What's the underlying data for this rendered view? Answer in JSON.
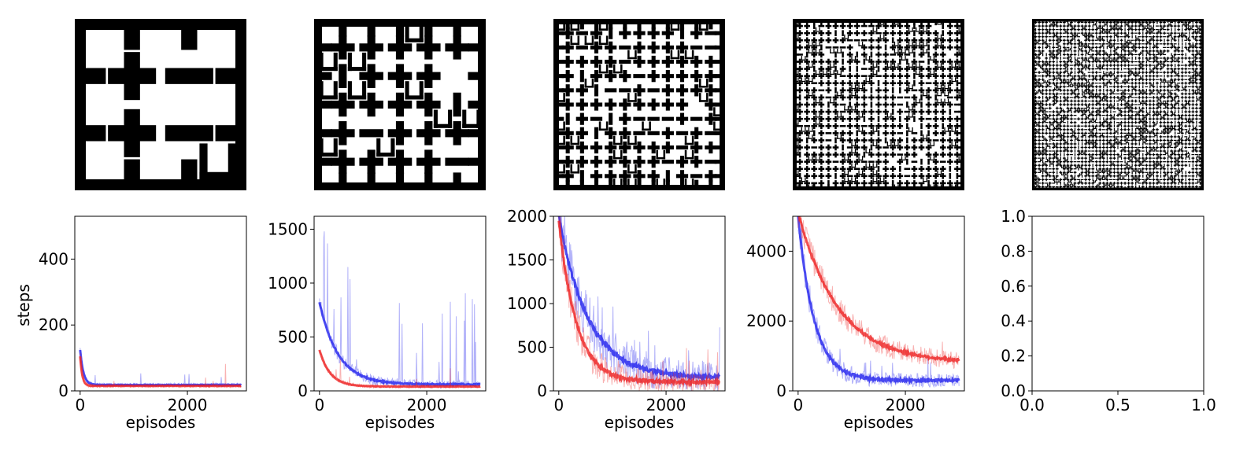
{
  "mazes": [
    {
      "grid": 3
    },
    {
      "grid": 6
    },
    {
      "grid": 12
    },
    {
      "grid": 24
    },
    {
      "grid": 48
    }
  ],
  "colors": {
    "agent_a": "#2222ee",
    "agent_b": "#ee2222"
  },
  "chart_data": [
    {
      "type": "line",
      "xlabel": "episodes",
      "ylabel": "steps",
      "xlim": [
        -100,
        3100
      ],
      "ylim": [
        0,
        530
      ],
      "xticks": [
        0,
        2000
      ],
      "yticks": [
        0,
        200,
        400
      ],
      "grid": false,
      "series": [
        {
          "color": "blue",
          "start": 125,
          "end": 18,
          "tau": 60,
          "noise": 12,
          "spike_prob": 0.02,
          "spike_max": 40
        },
        {
          "color": "red",
          "start": 105,
          "end": 15,
          "tau": 40,
          "noise": 10,
          "spike_prob": 0.01,
          "spike_max": 120
        }
      ]
    },
    {
      "type": "line",
      "xlabel": "episodes",
      "ylabel": "",
      "xlim": [
        -100,
        3100
      ],
      "ylim": [
        0,
        1620
      ],
      "xticks": [
        0,
        2000
      ],
      "yticks": [
        0,
        500,
        1000,
        1500
      ],
      "grid": false,
      "series": [
        {
          "color": "blue",
          "start": 820,
          "end": 60,
          "tau": 350,
          "noise": 80,
          "spike_prob": 0.08,
          "spike_max": 900
        },
        {
          "color": "red",
          "start": 380,
          "end": 40,
          "tau": 200,
          "noise": 30,
          "spike_prob": 0.01,
          "spike_max": 200
        }
      ]
    },
    {
      "type": "line",
      "xlabel": "episodes",
      "ylabel": "",
      "xlim": [
        -100,
        3100
      ],
      "ylim": [
        0,
        2000
      ],
      "xticks": [
        0,
        2000
      ],
      "yticks": [
        0,
        500,
        1000,
        1500,
        2000
      ],
      "grid": false,
      "series": [
        {
          "color": "blue",
          "start": 2000,
          "end": 150,
          "tau": 550,
          "noise": 350,
          "spike_prob": 0.05,
          "spike_max": 600
        },
        {
          "color": "red",
          "start": 1950,
          "end": 100,
          "tau": 330,
          "noise": 250,
          "spike_prob": 0.02,
          "spike_max": 400
        }
      ]
    },
    {
      "type": "line",
      "xlabel": "episodes",
      "ylabel": "",
      "xlim": [
        -100,
        3100
      ],
      "ylim": [
        0,
        5000
      ],
      "xticks": [
        0,
        2000
      ],
      "yticks": [
        0,
        2000,
        4000
      ],
      "grid": false,
      "series": [
        {
          "color": "blue",
          "start": 5000,
          "end": 300,
          "tau": 300,
          "noise": 450,
          "spike_prob": 0.03,
          "spike_max": 900
        },
        {
          "color": "red",
          "start": 5100,
          "end": 800,
          "tau": 750,
          "noise": 450,
          "spike_prob": 0.02,
          "spike_max": 700
        }
      ]
    },
    {
      "type": "line",
      "xlabel": "",
      "ylabel": "",
      "xlim": [
        0.0,
        1.0
      ],
      "ylim": [
        0.0,
        1.0
      ],
      "xticks": [
        0.0,
        0.5,
        1.0
      ],
      "yticks": [
        0.0,
        0.2,
        0.4,
        0.6,
        0.8,
        1.0
      ],
      "xtick_labels": [
        "0.0",
        "0.5",
        "1.0"
      ],
      "ytick_labels": [
        "0.0",
        "0.2",
        "0.4",
        "0.6",
        "0.8",
        "1.0"
      ],
      "grid": false,
      "series": []
    }
  ]
}
